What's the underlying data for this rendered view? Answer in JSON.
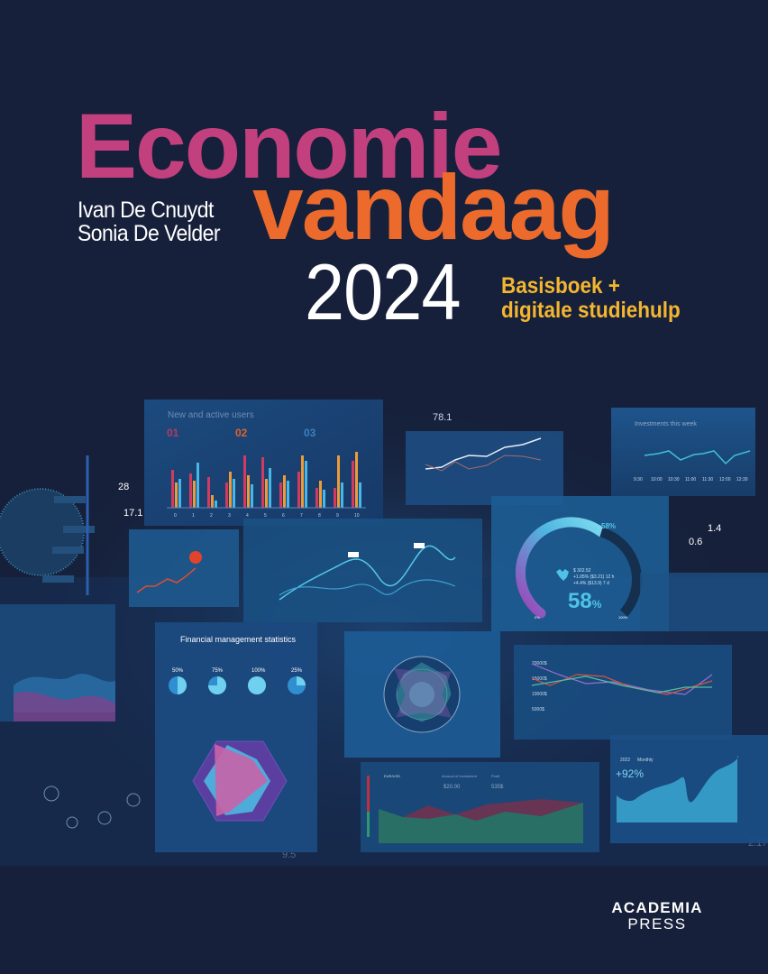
{
  "cover": {
    "title_line1": "Economie",
    "title_line2": "vandaag",
    "year": "2024",
    "authors": [
      "Ivan De Cnuydt",
      "Sonia De Velder"
    ],
    "subtitle": [
      "Basisboek +",
      "digitale studiehulp"
    ],
    "publisher": [
      "ACADEMIA",
      "PRESS"
    ],
    "colors": {
      "background": "#16203a",
      "title1": "#c3407f",
      "title2": "#ec6a2c",
      "subtitle": "#f4b630"
    }
  },
  "dashboard": {
    "floating_numbers": [
      "78.1",
      "28",
      "17.1",
      "1.4",
      "0.6",
      "9.5",
      "2.17"
    ],
    "users_panel": {
      "title": "New and active users",
      "steps": [
        "01",
        "02",
        "03"
      ],
      "x_labels": [
        "0",
        "1",
        "2",
        "3",
        "4",
        "5",
        "6",
        "7",
        "8",
        "9",
        "10"
      ]
    },
    "investments_panel": {
      "title": "Investments this week",
      "times": [
        "9:30",
        "10:00",
        "10:30",
        "11:00",
        "11:30",
        "12:00",
        "12:30"
      ]
    },
    "gauge_panel": {
      "value": "58",
      "unit": "%",
      "small_value": "58%",
      "price": "$ 302.52",
      "change_12h": "+1.05% ($3.21) 12 h",
      "change_7d": "+4.4% ($13.9) 7 d",
      "min_label": "0%",
      "max_label": "100%"
    },
    "finance_panel": {
      "title": "Financial management statistics",
      "percents": [
        "50%",
        "75%",
        "100%",
        "25%"
      ]
    },
    "multiline_panel": {
      "y_labels": [
        "20000$",
        "15000$",
        "10000$",
        "5000$"
      ]
    },
    "forex_panel": {
      "pair": "EUR/USD",
      "amount_label": "Amount of Investment",
      "amount": "$20.00",
      "profit_label": "Profit",
      "profit": "535$"
    },
    "growth_panel": {
      "year": "2022",
      "period": "Monthly",
      "change": "+92%"
    }
  }
}
